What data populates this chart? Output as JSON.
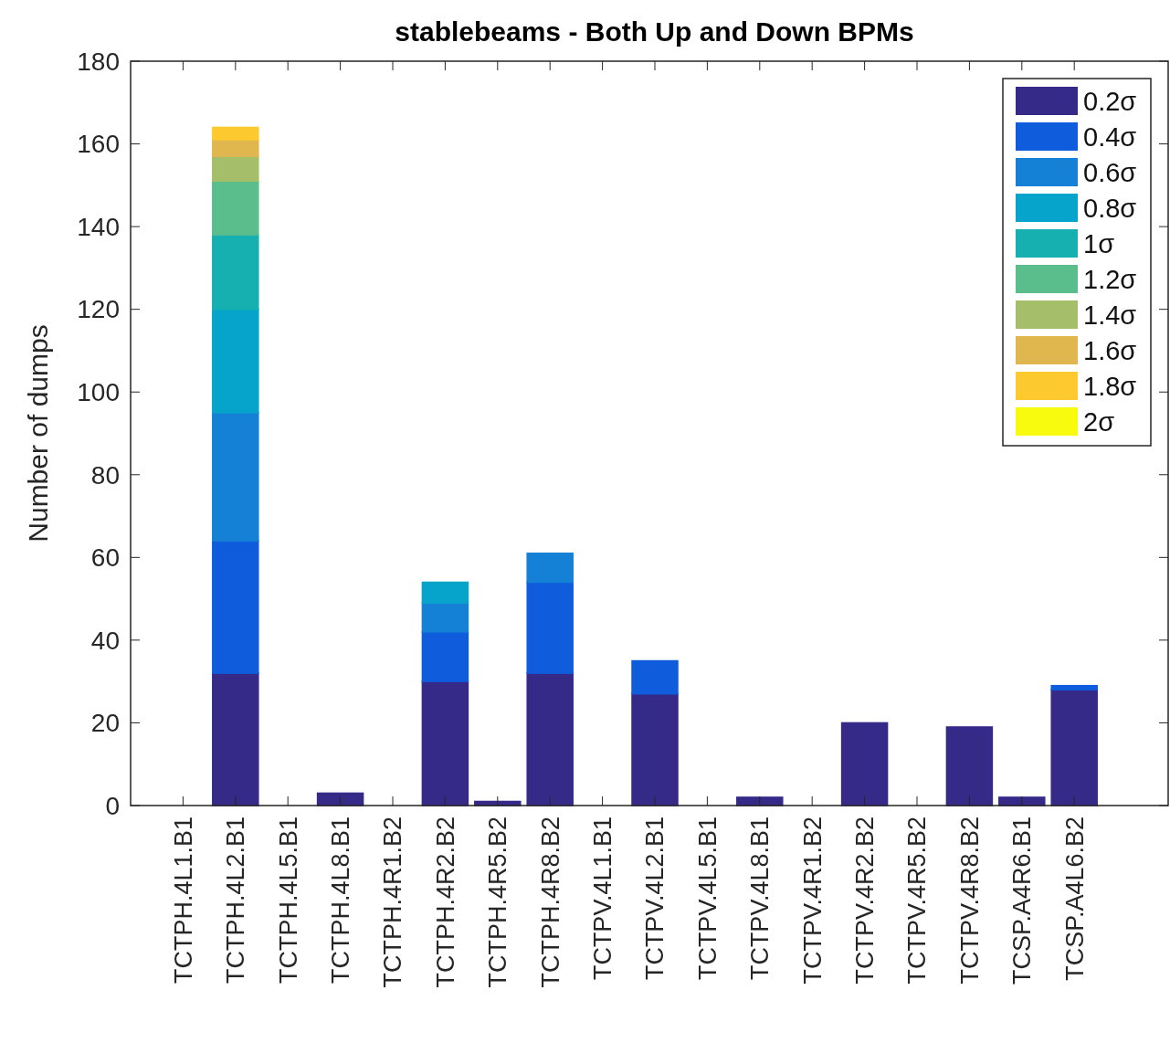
{
  "chart_data": {
    "type": "bar",
    "stacked": true,
    "title": "stablebeams - Both Up and Down BPMs",
    "ylabel": "Number of dumps",
    "categories": [
      "TCTPH.4L1.B1",
      "TCTPH.4L2.B1",
      "TCTPH.4L5.B1",
      "TCTPH.4L8.B1",
      "TCTPH.4R1.B2",
      "TCTPH.4R2.B2",
      "TCTPH.4R5.B2",
      "TCTPH.4R8.B2",
      "TCTPV.4L1.B1",
      "TCTPV.4L2.B1",
      "TCTPV.4L5.B1",
      "TCTPV.4L8.B1",
      "TCTPV.4R1.B2",
      "TCTPV.4R2.B2",
      "TCTPV.4R5.B2",
      "TCTPV.4R8.B2",
      "TCSP.A4R6.B1",
      "TCSP.A4L6.B2"
    ],
    "series": [
      {
        "name": "0.2σ",
        "color": "#352a87",
        "values": [
          0,
          32,
          0,
          3,
          0,
          30,
          1,
          32,
          0,
          27,
          0,
          2,
          0,
          20,
          0,
          19,
          2,
          28
        ]
      },
      {
        "name": "0.4σ",
        "color": "#0f5cdd",
        "values": [
          0,
          32,
          0,
          0,
          0,
          12,
          0,
          22,
          0,
          8,
          0,
          0,
          0,
          0,
          0,
          0,
          0,
          1
        ]
      },
      {
        "name": "0.6σ",
        "color": "#1481d6",
        "values": [
          0,
          31,
          0,
          0,
          0,
          7,
          0,
          7,
          0,
          0,
          0,
          0,
          0,
          0,
          0,
          0,
          0,
          0
        ]
      },
      {
        "name": "0.8σ",
        "color": "#06a4ca",
        "values": [
          0,
          25,
          0,
          0,
          0,
          5,
          0,
          0,
          0,
          0,
          0,
          0,
          0,
          0,
          0,
          0,
          0,
          0
        ]
      },
      {
        "name": "1σ",
        "color": "#17b0b0",
        "values": [
          0,
          18,
          0,
          0,
          0,
          0,
          0,
          0,
          0,
          0,
          0,
          0,
          0,
          0,
          0,
          0,
          0,
          0
        ]
      },
      {
        "name": "1.2σ",
        "color": "#59bd8c",
        "values": [
          0,
          13,
          0,
          0,
          0,
          0,
          0,
          0,
          0,
          0,
          0,
          0,
          0,
          0,
          0,
          0,
          0,
          0
        ]
      },
      {
        "name": "1.4σ",
        "color": "#a5be6a",
        "values": [
          0,
          6,
          0,
          0,
          0,
          0,
          0,
          0,
          0,
          0,
          0,
          0,
          0,
          0,
          0,
          0,
          0,
          0
        ]
      },
      {
        "name": "1.6σ",
        "color": "#e0b64f",
        "values": [
          0,
          4,
          0,
          0,
          0,
          0,
          0,
          0,
          0,
          0,
          0,
          0,
          0,
          0,
          0,
          0,
          0,
          0
        ]
      },
      {
        "name": "1.8σ",
        "color": "#fcca2e",
        "values": [
          0,
          3,
          0,
          0,
          0,
          0,
          0,
          0,
          0,
          0,
          0,
          0,
          0,
          0,
          0,
          0,
          0,
          0
        ]
      },
      {
        "name": "2σ",
        "color": "#f9fb0e",
        "values": [
          0,
          0,
          0,
          0,
          0,
          0,
          0,
          0,
          0,
          0,
          0,
          0,
          0,
          0,
          0,
          0,
          0,
          0
        ]
      }
    ],
    "ylim": [
      0,
      180
    ],
    "yticks": [
      0,
      20,
      40,
      60,
      80,
      100,
      120,
      140,
      160,
      180
    ],
    "legend": "top right",
    "grid": false
  }
}
